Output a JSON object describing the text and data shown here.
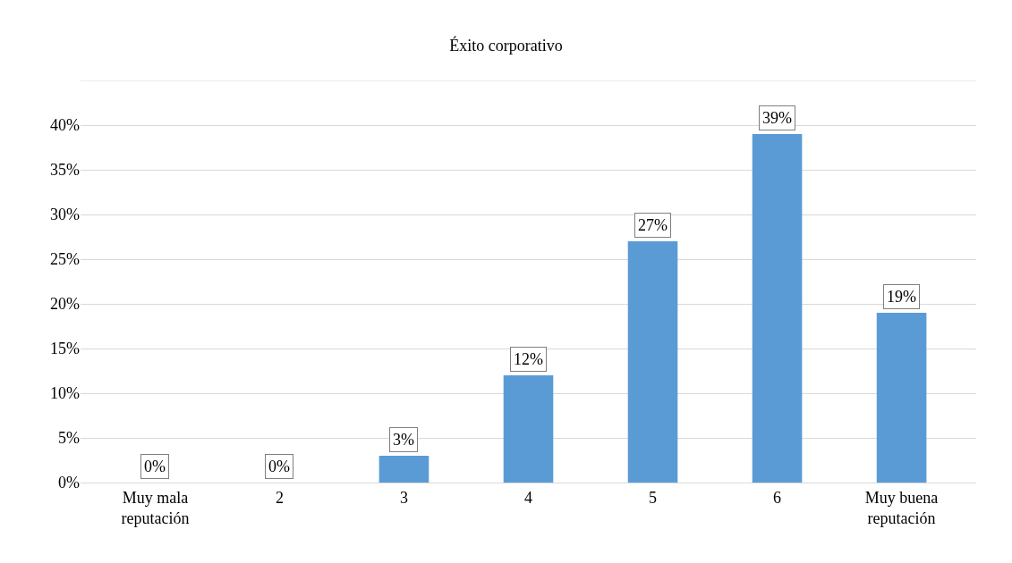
{
  "chart_data": {
    "type": "bar",
    "title": "Éxito corporativo",
    "categories": [
      "Muy mala reputación",
      "2",
      "3",
      "4",
      "5",
      "6",
      "Muy buena reputación"
    ],
    "values": [
      0,
      0,
      3,
      12,
      27,
      39,
      19
    ],
    "value_labels": [
      "0%",
      "0%",
      "3%",
      "12%",
      "27%",
      "39%",
      "19%"
    ],
    "color": "#5b9bd5",
    "ylim": [
      0,
      45
    ],
    "yticks": [
      {
        "value": 0,
        "label": "0%"
      },
      {
        "value": 5,
        "label": "5%"
      },
      {
        "value": 10,
        "label": "10%"
      },
      {
        "value": 15,
        "label": "15%"
      },
      {
        "value": 20,
        "label": "20%"
      },
      {
        "value": 25,
        "label": "25%"
      },
      {
        "value": 30,
        "label": "30%"
      },
      {
        "value": 35,
        "label": "35%"
      },
      {
        "value": 40,
        "label": "40%"
      },
      {
        "value": 45,
        "label": null
      }
    ],
    "grid": "y"
  }
}
